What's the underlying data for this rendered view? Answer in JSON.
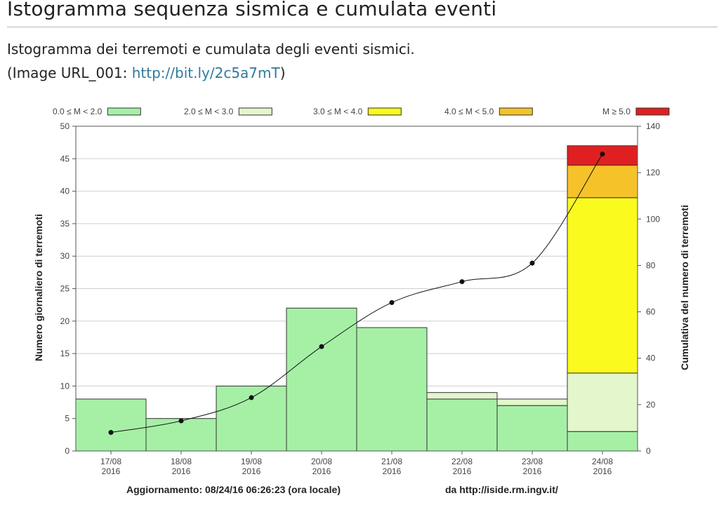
{
  "header": {
    "title": "Istogramma sequenza sismica e cumulata eventi",
    "subtitle": "Istogramma dei terremoti e cumulata degli eventi sismici.",
    "image_url_prefix": "(Image URL_001: ",
    "image_url_link": "http://bit.ly/2c5a7mT",
    "image_url_suffix": ")"
  },
  "colors": {
    "m0_2": "#a6f0a6",
    "m2_3": "#e4f6cc",
    "m3_4": "#fafa1e",
    "m4_5": "#f5c22a",
    "m5": "#e02020",
    "bar_edge": "#333333",
    "grid": "#cfcfcf",
    "cumulative": "#111111"
  },
  "chart_data": {
    "type": "bar",
    "stacked": true,
    "categories": [
      "17/08\n2016",
      "18/08\n2016",
      "19/08\n2016",
      "20/08\n2016",
      "21/08\n2016",
      "22/08\n2016",
      "23/08\n2016",
      "24/08\n2016"
    ],
    "series": [
      {
        "name": "0.0 ≤ M < 2.0",
        "color_key": "m0_2",
        "values": [
          8,
          5,
          10,
          22,
          19,
          8,
          7,
          3
        ]
      },
      {
        "name": "2.0 ≤ M < 3.0",
        "color_key": "m2_3",
        "values": [
          0,
          0,
          0,
          0,
          0,
          1,
          1,
          9
        ]
      },
      {
        "name": "3.0 ≤ M < 4.0",
        "color_key": "m3_4",
        "values": [
          0,
          0,
          0,
          0,
          0,
          0,
          0,
          27
        ]
      },
      {
        "name": "4.0 ≤ M < 5.0",
        "color_key": "m4_5",
        "values": [
          0,
          0,
          0,
          0,
          0,
          0,
          0,
          5
        ]
      },
      {
        "name": "M ≥ 5.0",
        "color_key": "m5",
        "values": [
          0,
          0,
          0,
          0,
          0,
          0,
          0,
          3
        ]
      }
    ],
    "cumulative": {
      "axis": "right",
      "values": [
        8,
        13,
        23,
        45,
        64,
        73,
        81,
        128
      ]
    },
    "ylabel": "Numero giornaliero di terremoti",
    "y2label": "Cumulativa del numero di terremoti",
    "ylim": [
      0,
      50
    ],
    "y2lim": [
      0,
      140
    ],
    "yticks": [
      0,
      5,
      10,
      15,
      20,
      25,
      30,
      35,
      40,
      45,
      50
    ],
    "y2ticks": [
      0,
      20,
      40,
      60,
      80,
      100,
      120,
      140
    ],
    "grid": true,
    "legend_position": "top",
    "footer_left": "Aggiornamento: 08/24/16 06:26:23 (ora locale)",
    "footer_right": "da http://iside.rm.ingv.it/"
  }
}
